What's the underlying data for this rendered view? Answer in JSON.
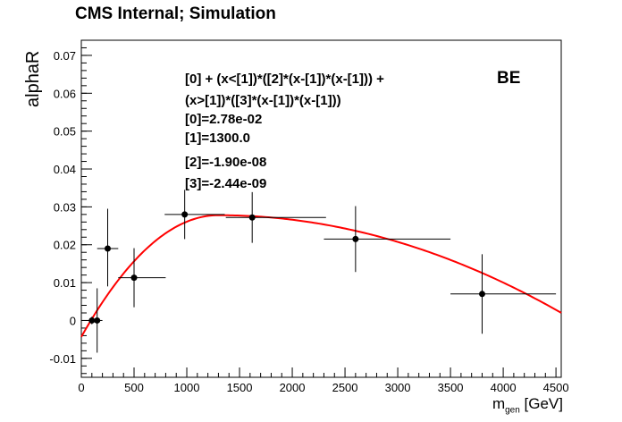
{
  "title": "CMS Internal; Simulation",
  "region_label": "BE",
  "annotations": {
    "formula_line1": "[0] + (x<[1])*([2]*(x-[1])*(x-[1])) +",
    "formula_line2": "(x>[1])*([3]*(x-[1])*(x-[1]))",
    "p0": "[0]=2.78e-02",
    "p1": "[1]=1300.0",
    "p2": "[2]=-1.90e-08",
    "p3": "[3]=-2.44e-09"
  },
  "chart_data": {
    "type": "scatter",
    "title": "CMS Internal; Simulation",
    "ylabel": "alphaR",
    "xlabel_main": "m",
    "xlabel_sub": "gen",
    "xlabel_unit": " [GeV]",
    "xlim": [
      0,
      4550
    ],
    "ylim": [
      -0.015,
      0.074
    ],
    "x_ticks": [
      0,
      500,
      1000,
      1500,
      2000,
      2500,
      3000,
      3500,
      4000,
      4500
    ],
    "y_ticks": [
      -0.01,
      0,
      0.01,
      0.02,
      0.03,
      0.04,
      0.05,
      0.06,
      0.07
    ],
    "y_tick_labels": [
      "-0.01",
      "0",
      "0.01",
      "0.02",
      "0.03",
      "0.04",
      "0.05",
      "0.06",
      "0.07"
    ],
    "grid": false,
    "series": [
      {
        "type": "errorbar",
        "color": "#000000",
        "points": [
          {
            "x": 100,
            "y": 0.0,
            "xerr_lo": 50,
            "xerr_hi": 50,
            "yerr_lo": 0.001,
            "yerr_hi": 0.001
          },
          {
            "x": 150,
            "y": 0.0,
            "xerr_lo": 50,
            "xerr_hi": 50,
            "yerr_lo": 0.0085,
            "yerr_hi": 0.0085
          },
          {
            "x": 250,
            "y": 0.019,
            "xerr_lo": 100,
            "xerr_hi": 100,
            "yerr_lo": 0.01,
            "yerr_hi": 0.0105
          },
          {
            "x": 500,
            "y": 0.0113,
            "xerr_lo": 150,
            "xerr_hi": 300,
            "yerr_lo": 0.0078,
            "yerr_hi": 0.0078
          },
          {
            "x": 980,
            "y": 0.028,
            "xerr_lo": 190,
            "xerr_hi": 380,
            "yerr_lo": 0.0065,
            "yerr_hi": 0.0065
          },
          {
            "x": 1620,
            "y": 0.0272,
            "xerr_lo": 250,
            "xerr_hi": 700,
            "yerr_lo": 0.0067,
            "yerr_hi": 0.0067
          },
          {
            "x": 2600,
            "y": 0.0215,
            "xerr_lo": 300,
            "xerr_hi": 900,
            "yerr_lo": 0.0087,
            "yerr_hi": 0.0087
          },
          {
            "x": 3800,
            "y": 0.007,
            "xerr_lo": 300,
            "xerr_hi": 700,
            "yerr_lo": 0.0105,
            "yerr_hi": 0.0105
          }
        ]
      },
      {
        "type": "function",
        "color": "#ff0000",
        "p0": 0.0278,
        "p1": 1300.0,
        "p2": -1.9e-08,
        "p3": -2.44e-09,
        "x_range": [
          0,
          4550
        ]
      }
    ]
  }
}
